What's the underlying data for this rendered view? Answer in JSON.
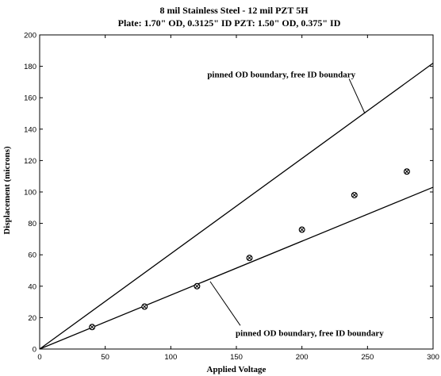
{
  "chart_data": {
    "type": "line",
    "title": "8 mil Stainless Steel - 12 mil PZT 5H",
    "subtitle": "Plate: 1.70\" OD, 0.3125\" ID     PZT: 1.50\" OD, 0.375\" ID",
    "xlabel": "Applied Voltage",
    "ylabel": "Displacement (microns)",
    "xlim": [
      0,
      300
    ],
    "ylim": [
      0,
      200
    ],
    "xticks": [
      0,
      50,
      100,
      150,
      200,
      250,
      300
    ],
    "yticks": [
      0,
      20,
      40,
      60,
      80,
      100,
      120,
      140,
      160,
      180,
      200
    ],
    "grid": false,
    "series": [
      {
        "style": "line",
        "x": [
          0,
          300
        ],
        "y": [
          0,
          182
        ],
        "color": "#000000"
      },
      {
        "style": "line",
        "x": [
          0,
          300
        ],
        "y": [
          0,
          103
        ],
        "color": "#000000"
      },
      {
        "style": "markers",
        "x": [
          40,
          80,
          120,
          160,
          200,
          240,
          280
        ],
        "y": [
          14,
          27,
          40,
          58,
          76,
          98,
          113
        ],
        "color": "#000000"
      }
    ],
    "annotations": [
      {
        "text": "pinned OD boundary,  free ID boundary",
        "target": [
          248,
          150
        ],
        "from": [
          236,
          172
        ]
      },
      {
        "text": "pinned OD boundary,  free ID boundary",
        "target": [
          130,
          43
        ],
        "from": [
          153,
          15
        ]
      }
    ]
  }
}
